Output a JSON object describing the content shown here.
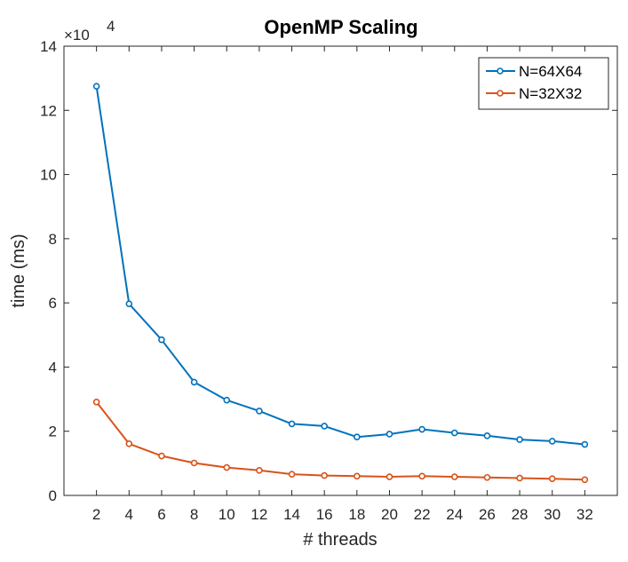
{
  "chart_data": {
    "type": "line",
    "title": "OpenMP Scaling",
    "xlabel": "# threads",
    "ylabel": "time (ms)",
    "y_multiplier_label": "×10",
    "y_multiplier_exponent": "4",
    "x": [
      2,
      4,
      6,
      8,
      10,
      12,
      14,
      16,
      18,
      20,
      22,
      24,
      26,
      28,
      30,
      32
    ],
    "xlim": [
      0,
      34
    ],
    "ylim": [
      0,
      14
    ],
    "x_ticks": [
      2,
      4,
      6,
      8,
      10,
      12,
      14,
      16,
      18,
      20,
      22,
      24,
      26,
      28,
      30,
      32
    ],
    "y_ticks": [
      0,
      2,
      4,
      6,
      8,
      10,
      12,
      14
    ],
    "grid": false,
    "legend_position": "top-right",
    "series": [
      {
        "name": "N=64X64",
        "color": "#0072BD",
        "values": [
          12.75,
          5.97,
          4.85,
          3.53,
          2.97,
          2.63,
          2.23,
          2.16,
          1.82,
          1.91,
          2.06,
          1.95,
          1.86,
          1.74,
          1.69,
          1.59
        ]
      },
      {
        "name": "N=32X32",
        "color": "#D95319",
        "values": [
          2.91,
          1.61,
          1.23,
          1.01,
          0.87,
          0.78,
          0.66,
          0.62,
          0.6,
          0.58,
          0.6,
          0.58,
          0.56,
          0.54,
          0.52,
          0.49
        ]
      }
    ]
  }
}
